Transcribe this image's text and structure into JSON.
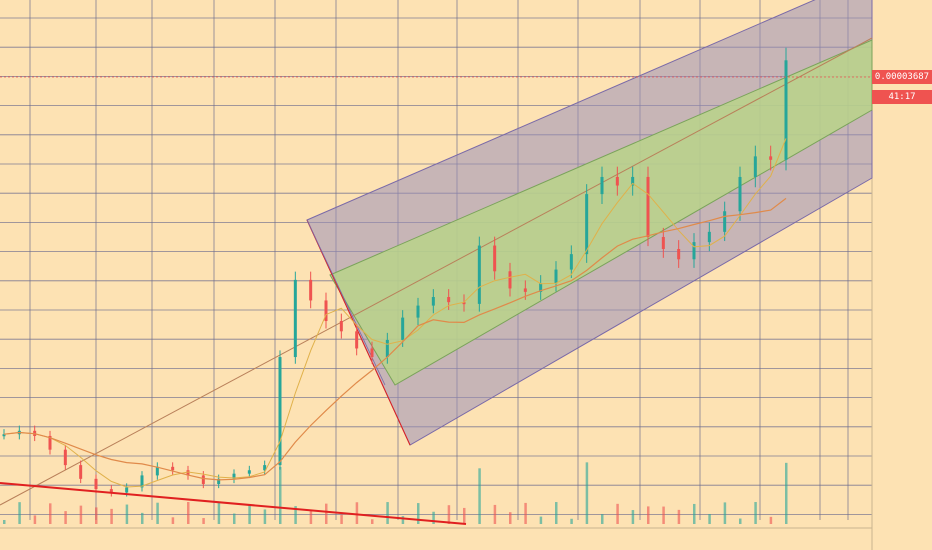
{
  "chart_data": {
    "type": "candlestick",
    "title": "",
    "legend_lines": [
      "",
      "",
      "",
      ""
    ],
    "price_label": "0.00003687",
    "countdown_label": "41:17",
    "grid": true,
    "colors": {
      "background": "#fde2b3",
      "grid": "#6b6b8e",
      "up": "#26a69a",
      "down": "#ef5350",
      "ma_fast": "#e0b14a",
      "ma_slow": "#e08a4a",
      "channel_outer_fill": "#9b8fb8",
      "channel_inner_fill": "#b9d38a",
      "channel_line": "#7a6aa8",
      "median_line": "#b9805a",
      "trend_line": "#e02020",
      "price_label_bg": "#ef5350"
    },
    "y_axis_labels": [
      "",
      "",
      "",
      "",
      "",
      "",
      "",
      "",
      "",
      "",
      "",
      "",
      "",
      "",
      "",
      "",
      ""
    ],
    "x_axis_labels": [
      "",
      "",
      "",
      "",
      "",
      "",
      "",
      "",
      ""
    ],
    "series": [
      {
        "name": "",
        "kind": "close_path",
        "values": [
          1.5e-05,
          1.52e-05,
          1.49e-05,
          1.41e-05,
          1.32e-05,
          1.24e-05,
          1.18e-05,
          1.16e-05,
          1.19e-05,
          1.26e-05,
          1.31e-05,
          1.29e-05,
          1.26e-05,
          1.21e-05,
          1.24e-05,
          1.27e-05,
          1.29e-05,
          1.32e-05,
          1.95e-05,
          2.4e-05,
          2.28e-05,
          2.16e-05,
          2.1e-05,
          2e-05,
          1.95e-05,
          2.05e-05,
          2.18e-05,
          2.25e-05,
          2.3e-05,
          2.27e-05,
          2.26e-05,
          2.6e-05,
          2.45e-05,
          2.35e-05,
          2.33e-05,
          2.38e-05,
          2.46e-05,
          2.55e-05,
          2.9e-05,
          3e-05,
          2.95e-05,
          3e-05,
          2.65e-05,
          2.58e-05,
          2.52e-05,
          2.62e-05,
          2.68e-05,
          2.8e-05,
          3e-05,
          3.12e-05,
          3.1e-05,
          3.68e-05
        ]
      }
    ]
  }
}
